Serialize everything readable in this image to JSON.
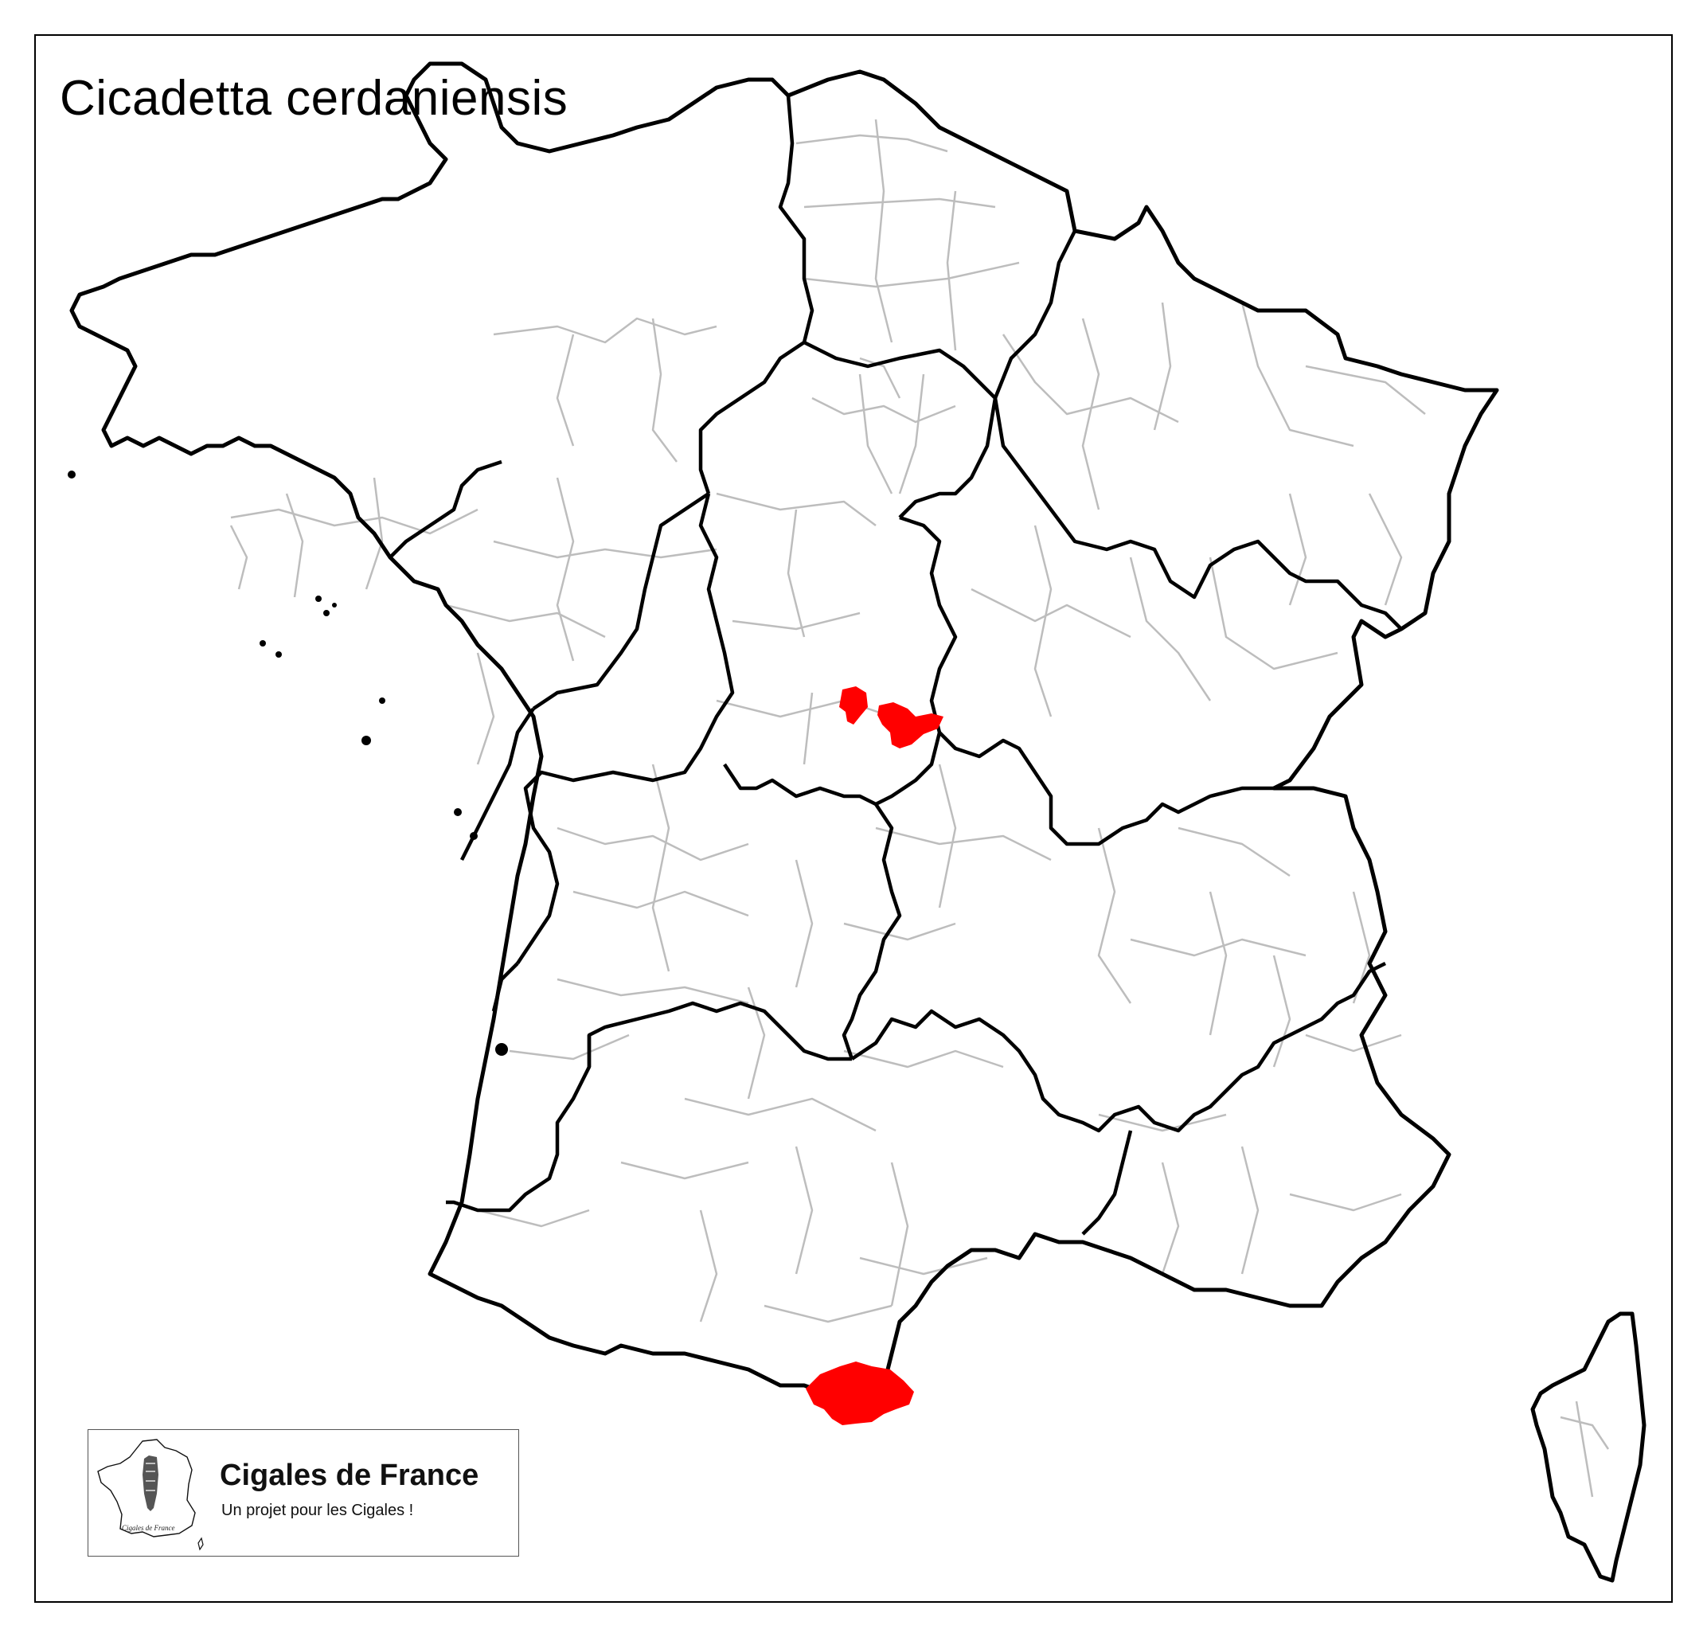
{
  "map": {
    "title": "Cicadetta cerdaniensis",
    "colors": {
      "region_border": "#000000",
      "department_border": "#bdbdbd",
      "presence": "#ff0000",
      "background": "#ffffff"
    }
  },
  "legend": {
    "logo_title": "Cigales de France",
    "logo_subtitle": "Un projet pour les Cigales !",
    "logo_caption": "Cigales de France"
  }
}
